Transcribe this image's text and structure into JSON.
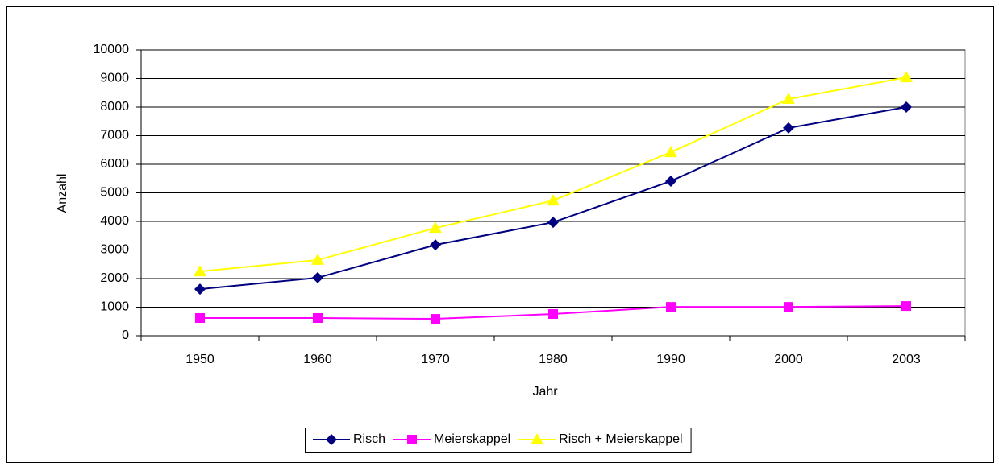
{
  "chart_data": {
    "type": "line",
    "x_label": "Jahr",
    "y_label": "Anzahl",
    "categories": [
      "1950",
      "1960",
      "1970",
      "1980",
      "1990",
      "2000",
      "2003"
    ],
    "series": [
      {
        "name": "Risch",
        "color": "#000080",
        "marker": "diamond",
        "values": [
          1630,
          2030,
          3180,
          3970,
          5410,
          7270,
          8000
        ]
      },
      {
        "name": "Meierskappel",
        "color": "#ff00ff",
        "marker": "square",
        "values": [
          620,
          620,
          590,
          760,
          1010,
          1010,
          1040
        ]
      },
      {
        "name": "Risch + Meierskappel",
        "color": "#ffff00",
        "marker": "triangle",
        "values": [
          2250,
          2650,
          3770,
          4730,
          6420,
          8280,
          9040
        ]
      }
    ],
    "ylim": [
      0,
      10000
    ],
    "yticks": [
      0,
      1000,
      2000,
      3000,
      4000,
      5000,
      6000,
      7000,
      8000,
      9000,
      10000
    ],
    "grid": true,
    "legend": "bottom"
  }
}
